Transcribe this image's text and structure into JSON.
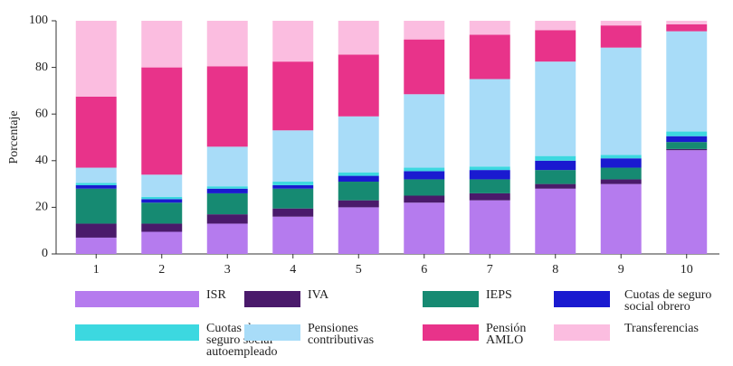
{
  "chart_data": {
    "type": "stacked_bar",
    "ylabel": "Porcentaje",
    "categories": [
      "1",
      "2",
      "3",
      "4",
      "5",
      "6",
      "7",
      "8",
      "9",
      "10"
    ],
    "ylim": [
      0,
      100
    ],
    "yticks": [
      0,
      20,
      40,
      60,
      80,
      100
    ],
    "series": [
      {
        "name": "ISR",
        "color": "#b57bee",
        "values": [
          7,
          9.5,
          13,
          16,
          20,
          22,
          23,
          28,
          30,
          44.5
        ]
      },
      {
        "name": "IVA",
        "color": "#4a1a6b",
        "values": [
          6,
          3.5,
          4,
          3.5,
          3,
          3,
          3,
          2,
          2,
          0.5
        ]
      },
      {
        "name": "IEPS",
        "color": "#168a72",
        "values": [
          15,
          9,
          9,
          8.5,
          8,
          7,
          6,
          6,
          5,
          3
        ]
      },
      {
        "name": "Cuotas de seguro social obrero",
        "color": "#1a1ad0",
        "values": [
          1.5,
          1.5,
          2,
          1.5,
          2.5,
          3.5,
          4,
          4,
          4,
          2.5
        ]
      },
      {
        "name": "Cuotas de seguro social autoempleado",
        "color": "#3cd8e0",
        "values": [
          1,
          1,
          1,
          1.5,
          1.5,
          1.5,
          1.5,
          2,
          1.5,
          2
        ]
      },
      {
        "name": "Pensiones contributivas",
        "color": "#a8dcf8",
        "values": [
          6.5,
          9.5,
          17,
          22,
          24,
          31.5,
          37.5,
          40.5,
          46,
          43
        ]
      },
      {
        "name": "Pensión AMLO",
        "color": "#e8338a",
        "values": [
          30.5,
          46,
          34.5,
          29.5,
          26.5,
          23.5,
          19,
          13.5,
          9.5,
          3
        ]
      },
      {
        "name": "Transferencias",
        "color": "#fbbde0",
        "values": [
          32.5,
          20,
          19.5,
          17.5,
          14.5,
          8,
          6,
          4,
          2,
          1.5
        ]
      }
    ]
  }
}
